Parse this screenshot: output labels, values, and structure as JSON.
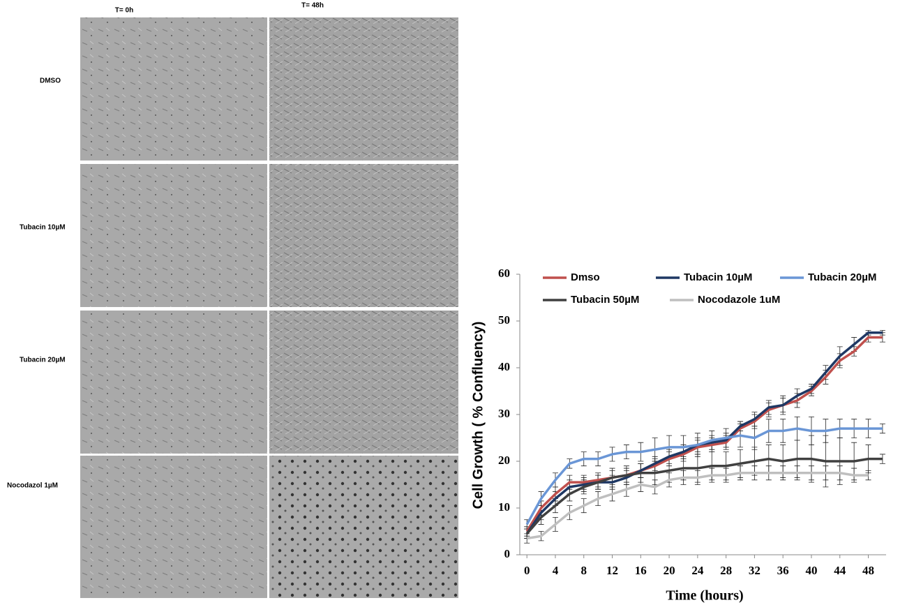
{
  "panels": {
    "column_labels": [
      "T= 0h",
      "T= 48h"
    ],
    "row_labels": [
      "DMSO",
      "Tubacin 10µM",
      "Tubacin 20µM",
      "Nocodazol 1µM"
    ]
  },
  "chart_data": {
    "type": "line",
    "x_label": "Time (hours)",
    "y_label": "Cell Growth ( % Confluency)",
    "x": [
      0,
      2,
      4,
      6,
      8,
      10,
      12,
      14,
      16,
      18,
      20,
      22,
      24,
      26,
      28,
      30,
      32,
      34,
      36,
      38,
      40,
      42,
      44,
      46,
      48,
      50
    ],
    "xlim": [
      -1,
      50.5
    ],
    "xticks": [
      0,
      4,
      8,
      12,
      16,
      20,
      24,
      28,
      32,
      36,
      40,
      44,
      48
    ],
    "ylim": [
      0,
      60
    ],
    "yticks": [
      0,
      10,
      20,
      30,
      40,
      50,
      60
    ],
    "series": [
      {
        "name": "Dmso",
        "color": "#c0504d",
        "values": [
          5,
          10,
          13,
          15.5,
          15.5,
          16,
          16.5,
          17,
          18,
          19,
          20.5,
          21.5,
          23,
          23.5,
          24,
          27,
          28.5,
          31,
          32,
          33,
          35,
          38,
          41.5,
          43.5,
          46.5,
          46.5
        ],
        "errors": [
          1,
          1.5,
          1.5,
          1.5,
          1.5,
          1.5,
          1.5,
          1.5,
          1.5,
          1.5,
          1.5,
          1.5,
          1.5,
          1.5,
          1.5,
          1.5,
          1.5,
          1.5,
          1.5,
          1.5,
          1,
          1.5,
          1.5,
          1,
          1,
          1
        ]
      },
      {
        "name": "Tubacin 10µM",
        "color": "#1f3864",
        "values": [
          4.5,
          9,
          12,
          14.5,
          15,
          15.5,
          15.5,
          16.5,
          18,
          19.5,
          21,
          22,
          23.5,
          24,
          24.5,
          27.5,
          29,
          31.5,
          32,
          34,
          35.5,
          39,
          42.5,
          45,
          47.5,
          47.5
        ],
        "errors": [
          1,
          1.5,
          1.5,
          1.5,
          1.5,
          1.5,
          1.5,
          1.5,
          1.5,
          1.5,
          1.5,
          1.5,
          1.5,
          1.5,
          1.5,
          1,
          1.5,
          1.5,
          2,
          1.5,
          1,
          1.5,
          2,
          1.5,
          0.5,
          0.5
        ]
      },
      {
        "name": "Tubacin 20µM",
        "color": "#6a96d6",
        "values": [
          6.5,
          12,
          16,
          19.5,
          20.5,
          20.5,
          21.5,
          22,
          22,
          22.5,
          23,
          23,
          23.5,
          24.5,
          25,
          25.5,
          25,
          26.5,
          26.5,
          27,
          26.5,
          26.5,
          27,
          27,
          27,
          27
        ],
        "errors": [
          1,
          1.5,
          1.5,
          1,
          1.5,
          1.5,
          1.5,
          1.5,
          2,
          2.5,
          2.5,
          2.5,
          2.5,
          2,
          2,
          2.5,
          2.5,
          2.5,
          2.5,
          2.5,
          3,
          2.5,
          2,
          2,
          2,
          1
        ]
      },
      {
        "name": "Tubacin 50µM",
        "color": "#404040",
        "values": [
          4.5,
          8,
          10.5,
          13,
          14.5,
          15.5,
          16.5,
          17,
          17.5,
          17.5,
          18,
          18.5,
          18.5,
          19,
          19,
          19.5,
          20,
          20.5,
          20,
          20.5,
          20.5,
          20,
          20,
          20,
          20.5,
          20.5
        ],
        "errors": [
          1,
          1.5,
          1.5,
          1.5,
          1.5,
          1.5,
          2,
          2,
          2,
          2.5,
          2.5,
          2.5,
          3,
          3,
          3,
          3,
          3,
          3,
          3.5,
          4,
          5,
          5.5,
          5,
          4,
          3,
          1
        ]
      },
      {
        "name": "Nocodazole 1uM",
        "color": "#bfbfbf",
        "values": [
          3.5,
          4,
          6.5,
          9,
          10.5,
          12,
          13,
          14,
          15,
          14.5,
          16,
          16.5,
          16.5,
          17,
          17,
          17.5,
          17.5,
          17.5,
          17.5,
          17.5,
          17.5,
          17.5,
          17.5,
          17,
          17,
          null
        ],
        "errors": [
          1,
          1,
          1.5,
          1.5,
          1.5,
          1.5,
          1.5,
          1.5,
          1.5,
          1.5,
          1.5,
          1.5,
          1.5,
          1.5,
          1.5,
          1.5,
          1.5,
          1.5,
          1.5,
          1.5,
          1.5,
          1.5,
          1.5,
          1.5,
          1,
          null
        ]
      }
    ]
  }
}
